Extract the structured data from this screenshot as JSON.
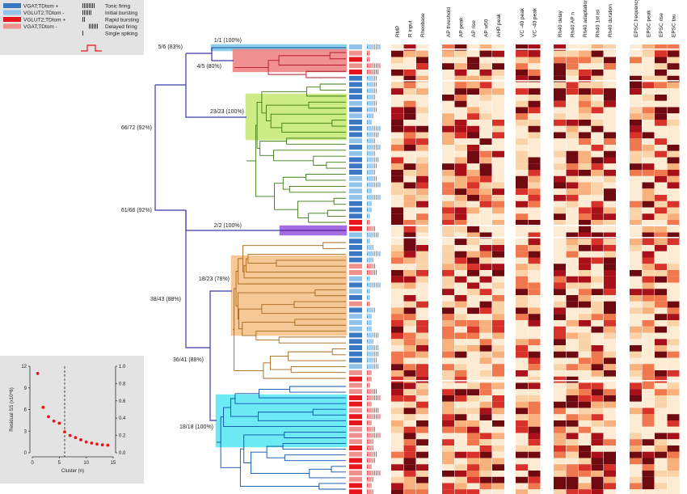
{
  "legend": {
    "populations": [
      {
        "label": "VGAT;TDtom +",
        "color": "#3a78c4"
      },
      {
        "label": "VGLUT2;TDtom -",
        "color": "#8fc3ea"
      },
      {
        "label": "VGLUT2;TDtom +",
        "color": "#e8161b"
      },
      {
        "label": "VGAT;TDtom -",
        "color": "#f0908d"
      }
    ],
    "firing_patterns": [
      "Tonic firing",
      "Initial bursting",
      "Rapid bursting",
      "Delayed firing",
      "Single spiking"
    ]
  },
  "dendrogram": {
    "node_labels": [
      "1/1 (100%)",
      "5/6 (83%)",
      "4/5 (80%)",
      "23/23 (100%)",
      "66/72 (92%)",
      "61/66 (92%)",
      "2/2 (100%)",
      "18/23 (78%)",
      "38/43 (88%)",
      "36/41 (88%)",
      "18/18 (100%)"
    ],
    "cluster_colors": [
      "#7ec8ea",
      "#f08585",
      "#c8ea7a",
      "#9b5fe0",
      "#f4c38b",
      "#5fe8f4"
    ],
    "link_color": "#3a3aa8"
  },
  "heatmap": {
    "groups": [
      [
        "RMP",
        "R input",
        "Rheobase"
      ],
      [
        "AP threshold",
        "AP peak",
        "AP rise",
        "AP w50",
        "AHP peak"
      ],
      [
        "VC -40 peak",
        "VC -40 peak"
      ],
      [
        "Rh40 delay",
        "Rh40 AP n",
        "Rh40 adaptation",
        "Rh40 1st isi",
        "Rh40 duration"
      ],
      [
        "EPSC frequency",
        "EPSC peak",
        "EPSC rise",
        "EPSC tau"
      ]
    ],
    "palette": [
      "#fdebd3",
      "#fbd3a8",
      "#f8b07c",
      "#f0784e",
      "#d8332a",
      "#a8101a",
      "#6e0a10"
    ]
  },
  "chart_data": {
    "type": "scatter",
    "title": "",
    "xlabel": "Cluster (n)",
    "ylabel": "Residual SS (x10^6)",
    "ylabel_right": "",
    "x": [
      1,
      2,
      3,
      4,
      5,
      6,
      7,
      8,
      9,
      10,
      11,
      12,
      13,
      14
    ],
    "y": [
      11.0,
      6.3,
      5.0,
      4.4,
      4.1,
      2.9,
      2.4,
      2.1,
      1.8,
      1.5,
      1.35,
      1.2,
      1.1,
      1.05
    ],
    "xlim": [
      0,
      15
    ],
    "ylim": [
      0,
      12
    ],
    "ylim_right": [
      0.0,
      1.0
    ],
    "xticks": [
      "0",
      "5",
      "10",
      "15"
    ],
    "yticks": [
      "0",
      "3",
      "6",
      "9",
      "12"
    ],
    "yticks_right": [
      "0.0",
      "0.2",
      "0.4",
      "0.6",
      "0.8",
      "1.0"
    ],
    "cutoff_x": 6,
    "point_color": "#e8161b"
  }
}
